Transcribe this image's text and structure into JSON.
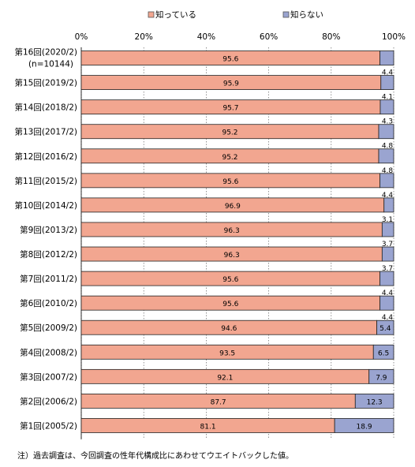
{
  "chart_data": {
    "type": "bar",
    "orientation": "horizontal",
    "stacked": true,
    "percent_axis": true,
    "xlim": [
      0,
      100
    ],
    "x_ticks": [
      "0%",
      "20%",
      "40%",
      "60%",
      "80%",
      "100%"
    ],
    "grid": true,
    "legend_position": "top",
    "categories": [
      "第16回(2020/2)",
      "第15回(2019/2)",
      "第14回(2018/2)",
      "第13回(2017/2)",
      "第12回(2016/2)",
      "第11回(2015/2)",
      "第10回(2014/2)",
      "第9回(2013/2)",
      "第8回(2012/2)",
      "第7回(2011/2)",
      "第6回(2010/2)",
      "第5回(2009/2)",
      "第4回(2008/2)",
      "第3回(2007/2)",
      "第2回(2006/2)",
      "第1回(2005/2)"
    ],
    "category_notes": {
      "0": "(n=10144)"
    },
    "series": [
      {
        "name": "知っている",
        "color": "#f2a690",
        "values": [
          95.6,
          95.9,
          95.7,
          95.2,
          95.2,
          95.6,
          96.9,
          96.3,
          96.3,
          95.6,
          95.6,
          94.6,
          93.5,
          92.1,
          87.7,
          81.1
        ]
      },
      {
        "name": "知らない",
        "color": "#9aa4d0",
        "values": [
          4.4,
          4.1,
          4.3,
          4.8,
          4.8,
          4.4,
          3.1,
          3.7,
          3.7,
          4.4,
          4.4,
          5.4,
          6.5,
          7.9,
          12.3,
          18.9
        ]
      }
    ]
  },
  "footnote": "注）過去調査は、今回調査の性年代構成比にあわせてウエイトバックした値。"
}
